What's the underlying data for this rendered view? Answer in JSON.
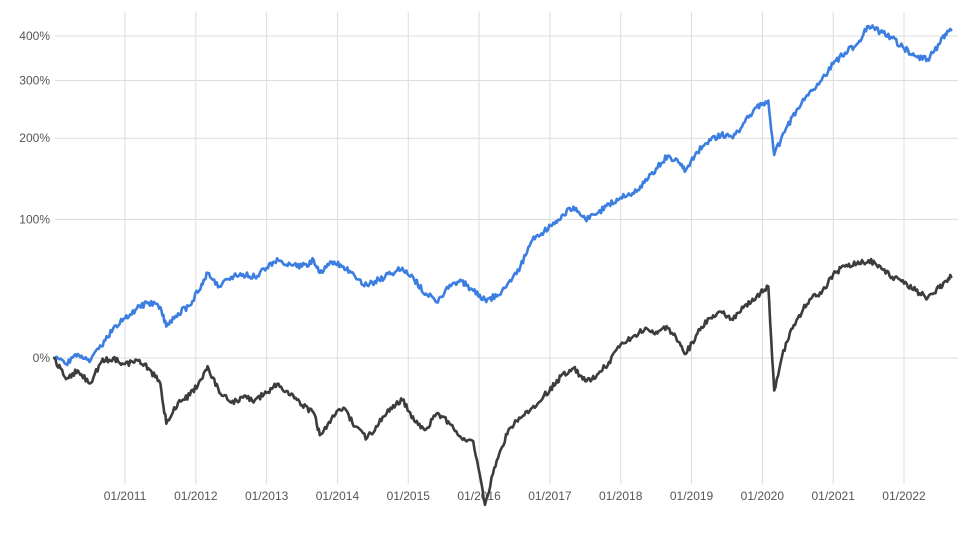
{
  "chart_data": {
    "type": "line",
    "title": "",
    "xlabel": "",
    "ylabel": "",
    "y_scale": "log(1+r)",
    "ylim_pct": [
      -60,
      430
    ],
    "xlim": [
      "2010-01",
      "2022-09"
    ],
    "grid": true,
    "legend": "none",
    "y_ticks": [
      {
        "value": 0,
        "label": "0%"
      },
      {
        "value": 100,
        "label": "100%"
      },
      {
        "value": 200,
        "label": "200%"
      },
      {
        "value": 300,
        "label": "300%"
      },
      {
        "value": 400,
        "label": "400%"
      }
    ],
    "x_ticks": [
      {
        "value": "2011-01",
        "label": "01/2011"
      },
      {
        "value": "2012-01",
        "label": "01/2012"
      },
      {
        "value": "2013-01",
        "label": "01/2013"
      },
      {
        "value": "2014-01",
        "label": "01/2014"
      },
      {
        "value": "2015-01",
        "label": "01/2015"
      },
      {
        "value": "2016-01",
        "label": "01/2016"
      },
      {
        "value": "2017-01",
        "label": "01/2017"
      },
      {
        "value": "2018-01",
        "label": "01/2018"
      },
      {
        "value": "2019-01",
        "label": "01/2019"
      },
      {
        "value": "2020-01",
        "label": "01/2020"
      },
      {
        "value": "2021-01",
        "label": "01/2021"
      },
      {
        "value": "2022-01",
        "label": "01/2022"
      }
    ],
    "series": [
      {
        "color": "#3b7de0",
        "points": [
          [
            "2010-01",
            0
          ],
          [
            "2010-03",
            -3
          ],
          [
            "2010-05",
            2
          ],
          [
            "2010-07",
            -2
          ],
          [
            "2010-09",
            6
          ],
          [
            "2010-11",
            16
          ],
          [
            "2011-01",
            22
          ],
          [
            "2011-03",
            28
          ],
          [
            "2011-05",
            32
          ],
          [
            "2011-07",
            29
          ],
          [
            "2011-08",
            17
          ],
          [
            "2011-10",
            25
          ],
          [
            "2011-12",
            30
          ],
          [
            "2012-02",
            45
          ],
          [
            "2012-03",
            53
          ],
          [
            "2012-05",
            43
          ],
          [
            "2012-07",
            50
          ],
          [
            "2012-09",
            52
          ],
          [
            "2012-11",
            50
          ],
          [
            "2013-01",
            57
          ],
          [
            "2013-03",
            63
          ],
          [
            "2013-05",
            60
          ],
          [
            "2013-07",
            58
          ],
          [
            "2013-09",
            63
          ],
          [
            "2013-10",
            53
          ],
          [
            "2013-12",
            62
          ],
          [
            "2014-02",
            58
          ],
          [
            "2014-04",
            50
          ],
          [
            "2014-06",
            44
          ],
          [
            "2014-08",
            48
          ],
          [
            "2014-10",
            52
          ],
          [
            "2014-12",
            57
          ],
          [
            "2015-02",
            48
          ],
          [
            "2015-04",
            38
          ],
          [
            "2015-06",
            32
          ],
          [
            "2015-08",
            44
          ],
          [
            "2015-10",
            47
          ],
          [
            "2015-12",
            40
          ],
          [
            "2016-02",
            34
          ],
          [
            "2016-04",
            36
          ],
          [
            "2016-06",
            46
          ],
          [
            "2016-08",
            58
          ],
          [
            "2016-10",
            80
          ],
          [
            "2016-12",
            88
          ],
          [
            "2017-02",
            98
          ],
          [
            "2017-03",
            104
          ],
          [
            "2017-05",
            113
          ],
          [
            "2017-07",
            100
          ],
          [
            "2017-09",
            106
          ],
          [
            "2017-11",
            116
          ],
          [
            "2018-01",
            123
          ],
          [
            "2018-03",
            128
          ],
          [
            "2018-05",
            140
          ],
          [
            "2018-07",
            158
          ],
          [
            "2018-09",
            175
          ],
          [
            "2018-11",
            165
          ],
          [
            "2018-12",
            155
          ],
          [
            "2019-02",
            180
          ],
          [
            "2019-04",
            198
          ],
          [
            "2019-06",
            205
          ],
          [
            "2019-08",
            200
          ],
          [
            "2019-10",
            225
          ],
          [
            "2019-12",
            250
          ],
          [
            "2020-02",
            262
          ],
          [
            "2020-03",
            176
          ],
          [
            "2020-05",
            215
          ],
          [
            "2020-07",
            248
          ],
          [
            "2020-09",
            278
          ],
          [
            "2020-11",
            300
          ],
          [
            "2021-01",
            335
          ],
          [
            "2021-03",
            360
          ],
          [
            "2021-05",
            380
          ],
          [
            "2021-07",
            425
          ],
          [
            "2021-09",
            410
          ],
          [
            "2021-11",
            395
          ],
          [
            "2022-01",
            370
          ],
          [
            "2022-03",
            352
          ],
          [
            "2022-05",
            345
          ],
          [
            "2022-07",
            380
          ],
          [
            "2022-08",
            405
          ],
          [
            "2022-09",
            415
          ]
        ]
      },
      {
        "color": "#3c3c3c",
        "points": [
          [
            "2010-01",
            0
          ],
          [
            "2010-03",
            -10
          ],
          [
            "2010-05",
            -6
          ],
          [
            "2010-07",
            -12
          ],
          [
            "2010-09",
            -2
          ],
          [
            "2010-11",
            0
          ],
          [
            "2011-01",
            -3
          ],
          [
            "2011-03",
            -1
          ],
          [
            "2011-05",
            -5
          ],
          [
            "2011-07",
            -12
          ],
          [
            "2011-08",
            -28
          ],
          [
            "2011-10",
            -20
          ],
          [
            "2011-12",
            -17
          ],
          [
            "2012-02",
            -10
          ],
          [
            "2012-03",
            -4
          ],
          [
            "2012-05",
            -16
          ],
          [
            "2012-07",
            -20
          ],
          [
            "2012-09",
            -18
          ],
          [
            "2012-11",
            -19
          ],
          [
            "2013-01",
            -16
          ],
          [
            "2013-03",
            -12
          ],
          [
            "2013-05",
            -17
          ],
          [
            "2013-07",
            -21
          ],
          [
            "2013-09",
            -24
          ],
          [
            "2013-10",
            -32
          ],
          [
            "2013-12",
            -26
          ],
          [
            "2014-02",
            -22
          ],
          [
            "2014-04",
            -29
          ],
          [
            "2014-06",
            -33
          ],
          [
            "2014-08",
            -28
          ],
          [
            "2014-10",
            -22
          ],
          [
            "2014-12",
            -19
          ],
          [
            "2015-02",
            -27
          ],
          [
            "2015-04",
            -30
          ],
          [
            "2015-06",
            -24
          ],
          [
            "2015-08",
            -28
          ],
          [
            "2015-10",
            -33
          ],
          [
            "2015-12",
            -34
          ],
          [
            "2016-02",
            -52
          ],
          [
            "2016-04",
            -40
          ],
          [
            "2016-06",
            -30
          ],
          [
            "2016-08",
            -26
          ],
          [
            "2016-10",
            -22
          ],
          [
            "2016-12",
            -17
          ],
          [
            "2017-02",
            -12
          ],
          [
            "2017-03",
            -8
          ],
          [
            "2017-05",
            -5
          ],
          [
            "2017-07",
            -11
          ],
          [
            "2017-09",
            -8
          ],
          [
            "2017-11",
            -2
          ],
          [
            "2018-01",
            7
          ],
          [
            "2018-03",
            11
          ],
          [
            "2018-05",
            15
          ],
          [
            "2018-07",
            14
          ],
          [
            "2018-09",
            16
          ],
          [
            "2018-11",
            8
          ],
          [
            "2018-12",
            2
          ],
          [
            "2019-02",
            13
          ],
          [
            "2019-04",
            22
          ],
          [
            "2019-06",
            26
          ],
          [
            "2019-08",
            21
          ],
          [
            "2019-10",
            30
          ],
          [
            "2019-12",
            36
          ],
          [
            "2020-02",
            43
          ],
          [
            "2020-03",
            -15
          ],
          [
            "2020-05",
            8
          ],
          [
            "2020-07",
            22
          ],
          [
            "2020-09",
            34
          ],
          [
            "2020-11",
            38
          ],
          [
            "2021-01",
            52
          ],
          [
            "2021-03",
            58
          ],
          [
            "2021-05",
            60
          ],
          [
            "2021-07",
            63
          ],
          [
            "2021-09",
            58
          ],
          [
            "2021-11",
            50
          ],
          [
            "2022-01",
            45
          ],
          [
            "2022-03",
            40
          ],
          [
            "2022-05",
            35
          ],
          [
            "2022-07",
            42
          ],
          [
            "2022-08",
            47
          ],
          [
            "2022-09",
            50
          ]
        ]
      }
    ]
  }
}
